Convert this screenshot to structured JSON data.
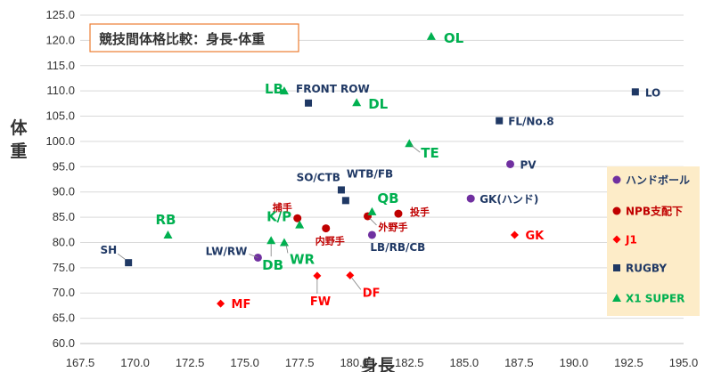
{
  "chart_data": {
    "type": "scatter",
    "title": "競技間体格比較：身長-体重",
    "xlabel": "身長",
    "ylabel": "体重",
    "xlim": [
      167.5,
      195.0
    ],
    "ylim": [
      60.0,
      125.0
    ],
    "xticks": [
      "167.5",
      "170.0",
      "172.5",
      "175.0",
      "177.5",
      "180.0",
      "182.5",
      "185.0",
      "187.5",
      "190.0",
      "192.5",
      "195.0"
    ],
    "yticks": [
      "60.0",
      "65.0",
      "70.0",
      "75.0",
      "80.0",
      "85.0",
      "90.0",
      "95.0",
      "100.0",
      "105.0",
      "110.0",
      "115.0",
      "120.0",
      "125.0"
    ],
    "grid": "horizontal",
    "legend_position": "right",
    "series": [
      {
        "name": "ハンドボール",
        "marker": "circle",
        "color": "#7030a0",
        "label_color": "#1f3864",
        "points": [
          {
            "x": 175.6,
            "y": 77.0,
            "label": "LW/RW"
          },
          {
            "x": 180.8,
            "y": 81.5,
            "label": "LB/RB/CB"
          },
          {
            "x": 185.3,
            "y": 88.7,
            "label": "GK(ハンド)"
          },
          {
            "x": 187.1,
            "y": 95.5,
            "label": "PV"
          }
        ]
      },
      {
        "name": "NPB支配下",
        "marker": "circle",
        "color": "#c00000",
        "label_color": "#c00000",
        "points": [
          {
            "x": 177.4,
            "y": 84.8,
            "label": "捕手"
          },
          {
            "x": 178.7,
            "y": 82.8,
            "label": "内野手"
          },
          {
            "x": 180.6,
            "y": 85.2,
            "label": "外野手"
          },
          {
            "x": 182.0,
            "y": 85.7,
            "label": "投手"
          }
        ]
      },
      {
        "name": "J1",
        "marker": "diamond",
        "color": "#ff0000",
        "label_color": "#ff0000",
        "points": [
          {
            "x": 173.9,
            "y": 67.9,
            "label": "MF"
          },
          {
            "x": 178.3,
            "y": 73.4,
            "label": "FW"
          },
          {
            "x": 179.8,
            "y": 73.5,
            "label": "DF"
          },
          {
            "x": 187.3,
            "y": 81.5,
            "label": "GK"
          }
        ]
      },
      {
        "name": "RUGBY",
        "marker": "square",
        "color": "#1f3864",
        "label_color": "#1f3864",
        "points": [
          {
            "x": 169.7,
            "y": 76.0,
            "label": "SH"
          },
          {
            "x": 177.9,
            "y": 107.6,
            "label": "FRONT ROW"
          },
          {
            "x": 179.4,
            "y": 90.4,
            "label": "SO/CTB"
          },
          {
            "x": 179.6,
            "y": 88.3,
            "label": "WTB/FB"
          },
          {
            "x": 186.6,
            "y": 104.1,
            "label": "FL/No.8"
          },
          {
            "x": 192.8,
            "y": 109.8,
            "label": "LO"
          }
        ]
      },
      {
        "name": "X1 SUPER",
        "marker": "triangle",
        "color": "#00b050",
        "label_color": "#00b050",
        "points": [
          {
            "x": 171.5,
            "y": 81.5,
            "label": "RB"
          },
          {
            "x": 176.2,
            "y": 80.4,
            "label": "DB"
          },
          {
            "x": 176.8,
            "y": 80.0,
            "label": "WR"
          },
          {
            "x": 176.8,
            "y": 110.0,
            "label": "LB"
          },
          {
            "x": 177.5,
            "y": 83.5,
            "label": "K/P"
          },
          {
            "x": 180.1,
            "y": 107.7,
            "label": "DL"
          },
          {
            "x": 180.8,
            "y": 86.1,
            "label": "QB"
          },
          {
            "x": 182.5,
            "y": 99.6,
            "label": "TE"
          },
          {
            "x": 183.5,
            "y": 120.8,
            "label": "OL"
          }
        ]
      }
    ]
  }
}
